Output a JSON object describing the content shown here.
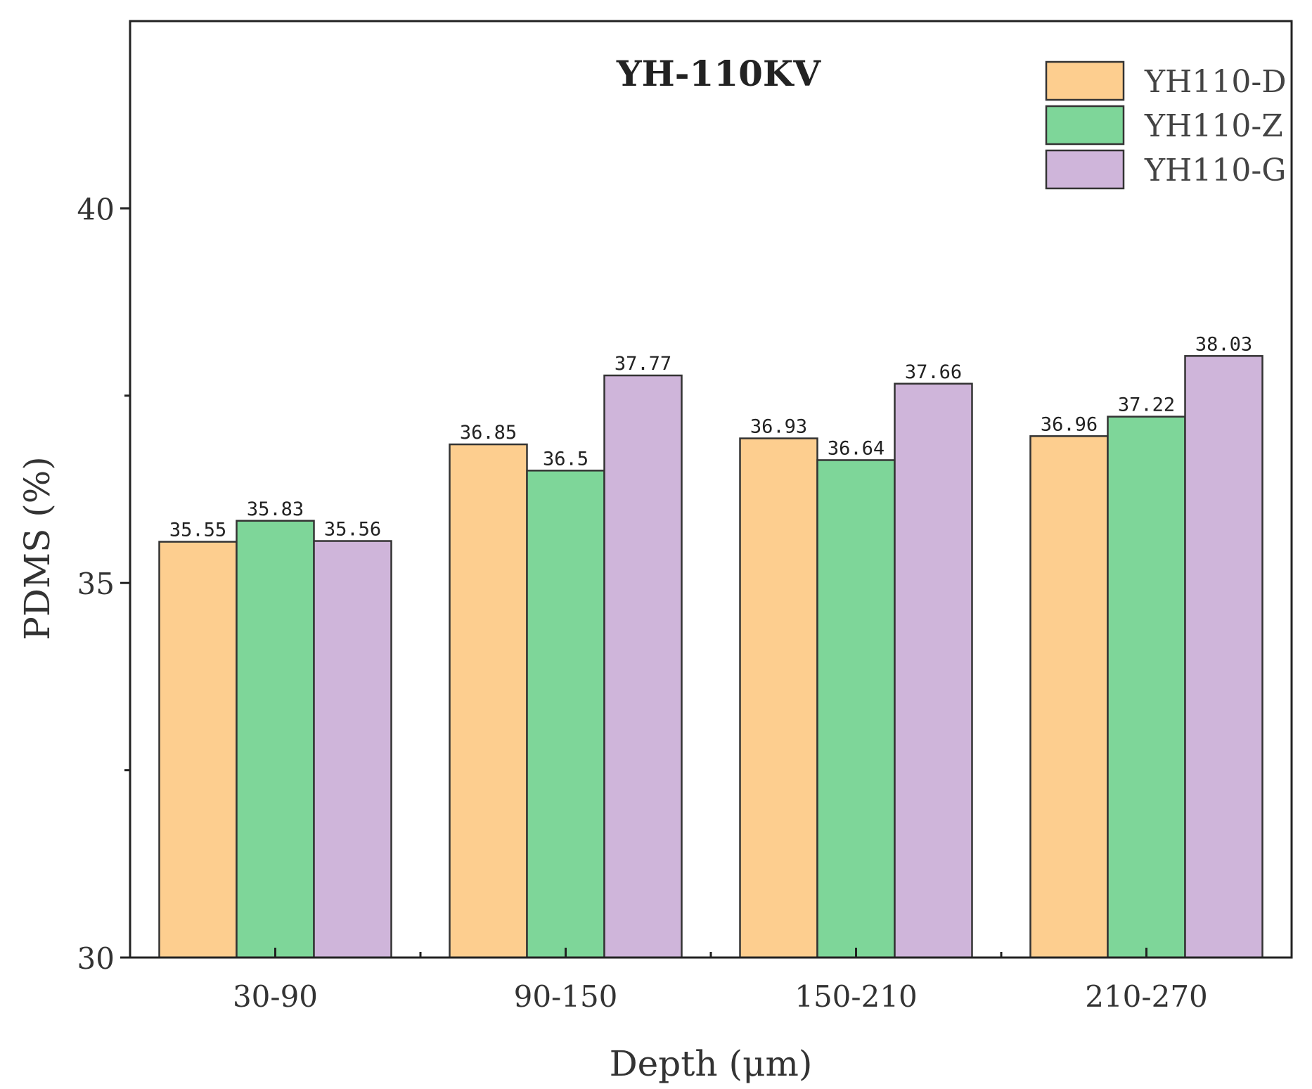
{
  "chart_data": {
    "type": "bar",
    "title": "YH-110KV",
    "xlabel": "Depth (μm)",
    "ylabel": "PDMS (%)",
    "categories": [
      "30-90",
      "90-150",
      "150-210",
      "210-270"
    ],
    "ylim": [
      30,
      42.5
    ],
    "yticks": [
      30,
      35,
      40
    ],
    "yminor": [
      32.5,
      37.5
    ],
    "grid": false,
    "legend_position": "top-right",
    "series": [
      {
        "name": "YH110-D",
        "color": "#FDCE8F",
        "values": [
          35.55,
          36.85,
          36.93,
          36.96
        ],
        "labels": [
          "35.55",
          "36.85",
          "36.93",
          "36.96"
        ]
      },
      {
        "name": "YH110-Z",
        "color": "#7ED699",
        "values": [
          35.83,
          36.5,
          36.64,
          37.22
        ],
        "labels": [
          "35.83",
          "36.5",
          "36.64",
          "37.22"
        ]
      },
      {
        "name": "YH110-G",
        "color": "#CFB5DA",
        "values": [
          35.56,
          37.77,
          37.66,
          38.03
        ],
        "labels": [
          "35.56",
          "37.77",
          "37.66",
          "38.03"
        ]
      }
    ]
  }
}
